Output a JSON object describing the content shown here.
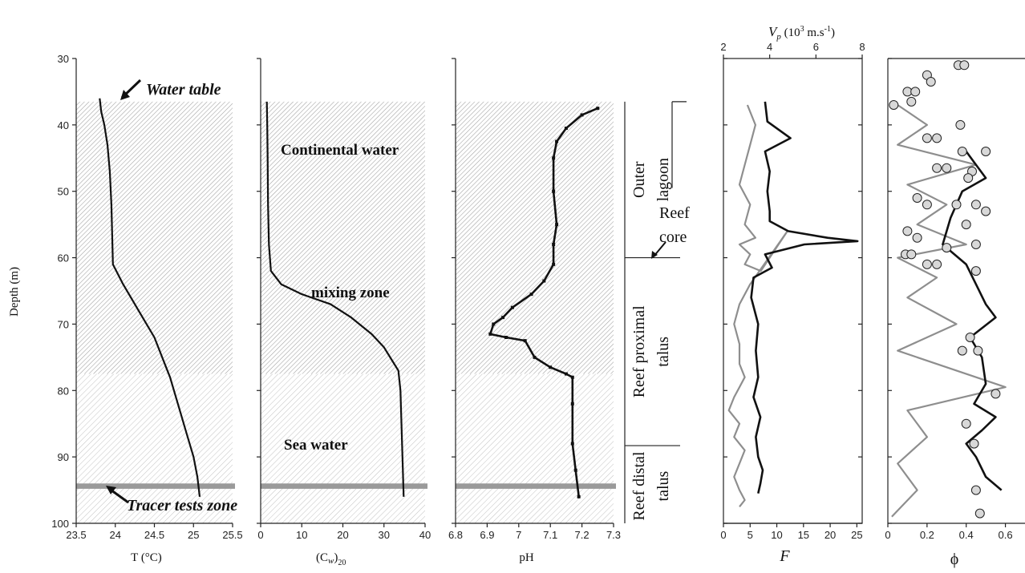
{
  "depth_axis": {
    "label": "Depth (m)",
    "ticks": [
      "30",
      "40",
      "50",
      "60",
      "70",
      "80",
      "90",
      "100"
    ],
    "ylim": [
      30,
      100
    ],
    "inverted": true
  },
  "panels": {
    "temperature": {
      "xlabel": "T (°C)",
      "ticks": [
        "23.5",
        "24",
        "24.5",
        "25",
        "25.5"
      ],
      "xlim": [
        23.5,
        25.5
      ]
    },
    "conductivity": {
      "xlabel": "(C",
      "xlabel_sub1": "w",
      "xlabel_close": ")",
      "xlabel_sub2": "20",
      "ticks": [
        "0",
        "10",
        "20",
        "30",
        "40"
      ],
      "xlim": [
        0,
        40
      ]
    },
    "ph": {
      "xlabel": "pH",
      "ticks": [
        "6.8",
        "6.9",
        "7",
        "7.1",
        "7.2",
        "7.3"
      ],
      "xlim": [
        6.8,
        7.3
      ]
    },
    "formation": {
      "xlabel": "F",
      "ticks": [
        "0",
        "5",
        "10",
        "15",
        "20",
        "25"
      ],
      "xlim": [
        0,
        26
      ],
      "top_label": "V",
      "top_label_sub": "p",
      "top_label_unit": "(10",
      "top_label_exp": "3",
      "top_label_unit2": " m.s",
      "top_label_exp2": "-1",
      "top_label_close": ")",
      "top_ticks": [
        "2",
        "4",
        "6",
        "8"
      ],
      "top_xlim": [
        2,
        8
      ]
    },
    "porosity": {
      "xlabel": "ϕ",
      "ticks": [
        "0",
        "0.2",
        "0.4",
        "0.6"
      ],
      "xlim": [
        0,
        0.7
      ]
    }
  },
  "zones": [
    {
      "name": "water-table-to-mixing",
      "from": 36.5,
      "to": 77.5
    },
    {
      "name": "sea-water",
      "from": 77.5,
      "to": 100
    },
    {
      "name": "tracer-band",
      "from": 94.0,
      "to": 94.8
    }
  ],
  "annotations": {
    "water_table": "Water table",
    "continental_water": "Continental water",
    "mixing_zone": "mixing zone",
    "sea_water": "Sea water",
    "tracer_tests": "Tracer tests zone",
    "reef_core_1": "Reef",
    "reef_core_2": "core"
  },
  "facies": [
    {
      "line1": "Outer",
      "line2": "lagoon",
      "from": 36.5,
      "to": 60.0
    },
    {
      "line1": "Reef proximal",
      "line2": "talus",
      "from": 60.0,
      "to": 88.3
    },
    {
      "line1": "Reef distal",
      "line2": "talus",
      "from": 88.3,
      "to": 100.5
    }
  ],
  "chart_data": [
    {
      "type": "line",
      "title": "",
      "xlabel": "T (°C)",
      "ylabel": "Depth (m)",
      "xlim": [
        23.5,
        25.5
      ],
      "ylim": [
        30,
        100
      ],
      "series": [
        {
          "x": [
            23.8,
            23.82,
            23.86,
            23.9,
            23.93,
            23.95,
            23.97,
            24.1,
            24.3,
            24.5,
            24.65,
            24.7,
            24.8,
            24.9,
            25.0,
            25.05,
            25.08
          ],
          "y": [
            36,
            38,
            40,
            43,
            47,
            52,
            61,
            64,
            68,
            72,
            76.5,
            78,
            82,
            86,
            90,
            93,
            96
          ]
        }
      ]
    },
    {
      "type": "line",
      "xlabel": "(Cw)20",
      "xlim": [
        0,
        40
      ],
      "ylim": [
        30,
        100
      ],
      "series": [
        {
          "x": [
            1.5,
            1.6,
            1.7,
            1.8,
            2.0,
            2.5,
            5,
            10,
            17,
            22,
            27,
            30,
            32,
            33.5,
            34,
            34.3,
            34.6,
            34.8
          ],
          "y": [
            36.5,
            40,
            45,
            52,
            58,
            62,
            64,
            65.5,
            67,
            69,
            71.5,
            73.5,
            75.5,
            77,
            80,
            86,
            92,
            96
          ]
        }
      ]
    },
    {
      "type": "line",
      "xlabel": "pH",
      "xlim": [
        6.8,
        7.3
      ],
      "ylim": [
        30,
        100
      ],
      "series": [
        {
          "x": [
            7.25,
            7.2,
            7.15,
            7.12,
            7.11,
            7.11,
            7.12,
            7.11,
            7.11,
            7.08,
            7.04,
            6.98,
            6.95,
            6.92,
            6.91,
            6.96,
            7.02,
            7.05,
            7.1,
            7.15,
            7.17,
            7.17,
            7.17,
            7.18,
            7.19
          ],
          "y": [
            37.5,
            38.5,
            40.5,
            42.5,
            45,
            50,
            55,
            58,
            61,
            63.5,
            65.5,
            67.5,
            69,
            70,
            71.5,
            72,
            72.5,
            75,
            76.5,
            77.5,
            78,
            82,
            88,
            92,
            96
          ]
        }
      ]
    },
    {
      "type": "line",
      "xlabel": "F",
      "xlim": [
        0,
        26
      ],
      "ylim": [
        30,
        100
      ],
      "series": [
        {
          "name": "F (grey)",
          "x": [
            4.5,
            6,
            5,
            4,
            3,
            5,
            4,
            6,
            3,
            5,
            4,
            7,
            12,
            5,
            3,
            2,
            3,
            3,
            4,
            3,
            2,
            1,
            3,
            2,
            4,
            3,
            2,
            3,
            4,
            3
          ],
          "y": [
            37,
            40,
            43,
            46,
            49,
            52,
            55,
            57,
            58,
            59.5,
            61,
            62,
            56,
            64,
            67,
            70,
            73,
            76,
            78,
            79.5,
            81,
            83,
            85,
            87,
            89,
            91,
            93,
            95,
            96.5,
            97.5
          ]
        },
        {
          "name": "Vp (black)",
          "x": [
            3.8,
            3.9,
            4.9,
            3.8,
            4.0,
            3.9,
            4.0,
            4.0,
            4.8,
            6.5,
            7.8,
            5.5,
            3.8,
            4.1,
            3.3,
            3.2,
            3.5,
            3.4,
            3.5,
            3.3,
            3.6,
            3.4,
            3.5,
            3.7,
            3.6,
            3.5
          ],
          "y": [
            36.5,
            39.5,
            42,
            44,
            47,
            50,
            53,
            54.5,
            56,
            57,
            57.5,
            58,
            59.5,
            61.5,
            63,
            66,
            70,
            74,
            78,
            81,
            84,
            87,
            90,
            92,
            94,
            95.5
          ]
        }
      ]
    },
    {
      "type": "scatter",
      "xlabel": "ϕ",
      "xlim": [
        0,
        0.7
      ],
      "ylim": [
        30,
        100
      ],
      "series": [
        {
          "name": "ϕ circles",
          "x": [
            0.36,
            0.39,
            0.2,
            0.22,
            0.1,
            0.14,
            0.12,
            0.03,
            0.37,
            0.2,
            0.25,
            0.38,
            0.5,
            0.25,
            0.3,
            0.43,
            0.41,
            0.15,
            0.2,
            0.35,
            0.45,
            0.5,
            0.4,
            0.1,
            0.15,
            0.3,
            0.45,
            0.09,
            0.12,
            0.2,
            0.25,
            0.45,
            0.42,
            0.38,
            0.46,
            0.55,
            0.4,
            0.44,
            0.45,
            0.47
          ],
          "y": [
            31,
            31,
            32.5,
            33.5,
            35,
            35,
            36.5,
            37,
            40,
            42,
            42,
            44,
            44,
            46.5,
            46.5,
            47,
            48,
            51,
            52,
            52,
            52,
            53,
            55,
            56,
            57,
            58.5,
            58,
            59.5,
            59.5,
            61,
            61,
            62,
            72,
            74,
            74,
            80.5,
            85,
            88,
            95,
            98.5
          ]
        },
        {
          "name": "ϕ grey",
          "x": [
            0.05,
            0.2,
            0.05,
            0.45,
            0.1,
            0.3,
            0.15,
            0.4,
            0.05,
            0.25,
            0.1,
            0.35,
            0.05,
            0.6,
            0.1,
            0.2,
            0.05,
            0.15,
            0.02
          ],
          "y": [
            37,
            40,
            43,
            46,
            49,
            52,
            55,
            58,
            60,
            63,
            66,
            70,
            74,
            79.5,
            83,
            87,
            91,
            95,
            99
          ]
        },
        {
          "name": "ϕ black",
          "x": [
            0.4,
            0.45,
            0.5,
            0.38,
            0.32,
            0.28,
            0.4,
            0.45,
            0.5,
            0.55,
            0.42,
            0.48,
            0.5,
            0.44,
            0.55,
            0.48,
            0.4,
            0.45,
            0.5,
            0.58
          ],
          "y": [
            44,
            46,
            48,
            50,
            54,
            58,
            61,
            64,
            67,
            69,
            72,
            75,
            79,
            82,
            84,
            86,
            88,
            90,
            93,
            95
          ]
        }
      ]
    }
  ]
}
